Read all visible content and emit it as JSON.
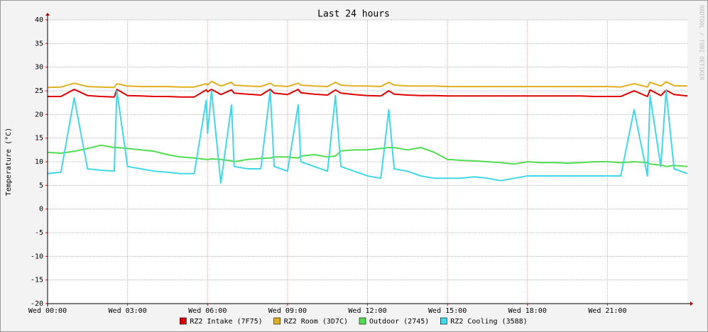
{
  "chart_data": {
    "type": "line",
    "title": "Last 24 hours",
    "y_label": "Temperature (°C)",
    "watermark": "RRDTOOL / TOBI OETIKER",
    "xlim": [
      0,
      24
    ],
    "ylim": [
      -20,
      40
    ],
    "yticks": [
      -20,
      -15,
      -10,
      -5,
      0,
      5,
      10,
      15,
      20,
      25,
      30,
      35,
      40
    ],
    "xticks": [
      {
        "value": 0,
        "label": "Wed 00:00"
      },
      {
        "value": 3,
        "label": "Wed 03:00"
      },
      {
        "value": 6,
        "label": "Wed 06:00"
      },
      {
        "value": 9,
        "label": "Wed 09:00"
      },
      {
        "value": 12,
        "label": "Wed 12:00"
      },
      {
        "value": 15,
        "label": "Wed 15:00"
      },
      {
        "value": 18,
        "label": "Wed 18:00"
      },
      {
        "value": 21,
        "label": "Wed 21:00"
      }
    ],
    "grid": true,
    "x": [
      0,
      0.5,
      1,
      1.5,
      2,
      2.5,
      2.6,
      3,
      3.5,
      4,
      4.5,
      5,
      5.5,
      5.95,
      6,
      6.15,
      6.5,
      6.9,
      7,
      7.5,
      8,
      8.35,
      8.5,
      9,
      9.4,
      9.5,
      10,
      10.5,
      10.8,
      11,
      11.5,
      12,
      12.5,
      12.8,
      13,
      13.5,
      14,
      14.5,
      15,
      15.5,
      16,
      16.5,
      17,
      17.5,
      18,
      18.5,
      19,
      19.5,
      20,
      20.5,
      21,
      21.5,
      22,
      22.5,
      22.6,
      23,
      23.2,
      23.5,
      24
    ],
    "series": [
      {
        "name": "RZ2 Intake (7F75)",
        "color": "#e00000",
        "values": [
          23.8,
          23.8,
          25.3,
          24.0,
          23.8,
          23.7,
          25.3,
          24.0,
          23.9,
          23.8,
          23.8,
          23.7,
          23.7,
          25.2,
          24.8,
          25.3,
          24.2,
          25.2,
          24.5,
          24.3,
          24.1,
          25.3,
          24.5,
          24.2,
          25.3,
          24.6,
          24.3,
          24.1,
          25.2,
          24.5,
          24.2,
          24.0,
          23.9,
          25.0,
          24.3,
          24.1,
          24.0,
          24.0,
          23.9,
          23.9,
          23.9,
          23.9,
          23.9,
          23.9,
          23.9,
          23.9,
          23.9,
          23.9,
          23.9,
          23.8,
          23.8,
          23.8,
          25.0,
          23.8,
          25.2,
          24.0,
          25.1,
          24.2,
          23.9
        ]
      },
      {
        "name": "RZ2 Room (3D7C)",
        "color": "#e0b020",
        "values": [
          25.7,
          25.8,
          26.6,
          25.9,
          25.8,
          25.7,
          26.5,
          26.0,
          25.9,
          25.9,
          25.9,
          25.8,
          25.8,
          26.5,
          26.2,
          27.0,
          26.0,
          26.8,
          26.2,
          26.0,
          25.9,
          26.6,
          26.1,
          25.9,
          26.6,
          26.2,
          26.0,
          25.9,
          26.8,
          26.2,
          26.0,
          26.0,
          25.9,
          26.8,
          26.2,
          26.0,
          26.0,
          26.0,
          25.9,
          25.9,
          25.9,
          25.9,
          25.9,
          25.9,
          25.9,
          25.9,
          25.9,
          25.9,
          25.9,
          25.9,
          25.9,
          25.8,
          26.5,
          25.8,
          26.8,
          26.0,
          26.9,
          26.1,
          26.0
        ]
      },
      {
        "name": "Outdoor (2745)",
        "color": "#50dd50",
        "values": [
          12.0,
          11.8,
          12.2,
          12.8,
          13.5,
          13.0,
          13.0,
          12.8,
          12.5,
          12.2,
          11.5,
          11.0,
          10.8,
          10.5,
          10.5,
          10.6,
          10.5,
          10.2,
          10.0,
          10.5,
          10.7,
          10.8,
          11.0,
          11.0,
          10.8,
          11.2,
          11.5,
          11.0,
          11.2,
          12.3,
          12.5,
          12.5,
          12.8,
          13.0,
          13.0,
          12.5,
          13.0,
          12.0,
          10.5,
          10.3,
          10.2,
          10.0,
          9.8,
          9.5,
          10.0,
          9.8,
          9.8,
          9.7,
          9.8,
          10.0,
          10.0,
          9.8,
          10.0,
          9.8,
          9.5,
          9.3,
          9.0,
          9.2,
          9.0
        ]
      },
      {
        "name": "RZ2 Cooling (3588)",
        "color": "#40d8e8",
        "values": [
          7.5,
          7.8,
          23.5,
          8.5,
          8.2,
          8.0,
          25.0,
          9.0,
          8.5,
          8.0,
          7.8,
          7.5,
          7.5,
          23.0,
          16.0,
          25.0,
          5.5,
          22.0,
          9.0,
          8.5,
          8.5,
          25.0,
          9.0,
          8.0,
          22.0,
          10.0,
          9.0,
          8.0,
          24.0,
          9.0,
          8.0,
          7.0,
          6.5,
          21.0,
          8.5,
          8.0,
          7.0,
          6.5,
          6.5,
          6.5,
          6.8,
          6.5,
          6.0,
          6.5,
          7.0,
          7.0,
          7.0,
          7.0,
          7.0,
          7.0,
          7.0,
          7.0,
          21.0,
          7.0,
          24.0,
          9.0,
          25.0,
          8.5,
          7.5
        ]
      }
    ]
  }
}
